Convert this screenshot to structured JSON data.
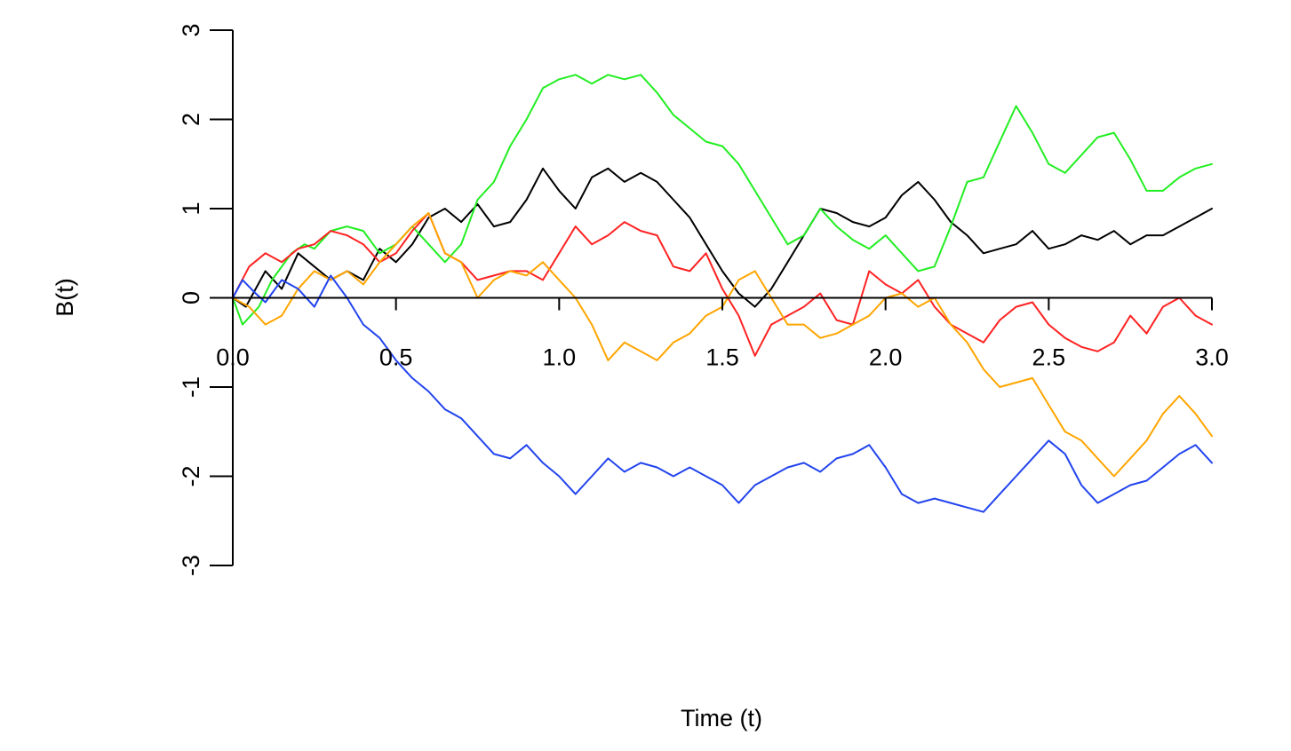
{
  "chart_data": {
    "type": "line",
    "title": "",
    "xlabel": "Time (t)",
    "ylabel": "B(t)",
    "xlim": [
      0,
      3
    ],
    "ylim": [
      -3,
      3
    ],
    "x_ticks": [
      0,
      0.5,
      1,
      1.5,
      2,
      2.5,
      3
    ],
    "x_tick_labels": [
      "0.0",
      "0.5",
      "1.0",
      "1.5",
      "2.0",
      "2.5",
      "3.0"
    ],
    "y_ticks": [
      -3,
      -2,
      -1,
      0,
      1,
      2,
      3
    ],
    "y_tick_labels": [
      "-3",
      "-2",
      "-1",
      "0",
      "1",
      "2",
      "3"
    ],
    "grid": false,
    "legend": "none",
    "x_axis_at_y": 0,
    "series": [
      {
        "color": "#000000",
        "points": [
          [
            0,
            0
          ],
          [
            0.04,
            -0.1
          ],
          [
            0.1,
            0.3
          ],
          [
            0.15,
            0.1
          ],
          [
            0.2,
            0.5
          ],
          [
            0.25,
            0.35
          ],
          [
            0.3,
            0.2
          ],
          [
            0.35,
            0.3
          ],
          [
            0.4,
            0.2
          ],
          [
            0.45,
            0.55
          ],
          [
            0.5,
            0.4
          ],
          [
            0.55,
            0.6
          ],
          [
            0.6,
            0.9
          ],
          [
            0.65,
            1.0
          ],
          [
            0.7,
            0.85
          ],
          [
            0.75,
            1.05
          ],
          [
            0.8,
            0.8
          ],
          [
            0.85,
            0.85
          ],
          [
            0.9,
            1.1
          ],
          [
            0.95,
            1.45
          ],
          [
            1.0,
            1.2
          ],
          [
            1.05,
            1.0
          ],
          [
            1.1,
            1.35
          ],
          [
            1.15,
            1.45
          ],
          [
            1.2,
            1.3
          ],
          [
            1.25,
            1.4
          ],
          [
            1.3,
            1.3
          ],
          [
            1.35,
            1.1
          ],
          [
            1.4,
            0.9
          ],
          [
            1.45,
            0.6
          ],
          [
            1.5,
            0.3
          ],
          [
            1.55,
            0.05
          ],
          [
            1.6,
            -0.1
          ],
          [
            1.65,
            0.1
          ],
          [
            1.7,
            0.4
          ],
          [
            1.75,
            0.7
          ],
          [
            1.8,
            1.0
          ],
          [
            1.85,
            0.95
          ],
          [
            1.9,
            0.85
          ],
          [
            1.95,
            0.8
          ],
          [
            2.0,
            0.9
          ],
          [
            2.05,
            1.15
          ],
          [
            2.1,
            1.3
          ],
          [
            2.15,
            1.1
          ],
          [
            2.2,
            0.85
          ],
          [
            2.25,
            0.7
          ],
          [
            2.3,
            0.5
          ],
          [
            2.35,
            0.55
          ],
          [
            2.4,
            0.6
          ],
          [
            2.45,
            0.75
          ],
          [
            2.5,
            0.55
          ],
          [
            2.55,
            0.6
          ],
          [
            2.6,
            0.7
          ],
          [
            2.65,
            0.65
          ],
          [
            2.7,
            0.75
          ],
          [
            2.75,
            0.6
          ],
          [
            2.8,
            0.7
          ],
          [
            2.85,
            0.7
          ],
          [
            2.9,
            0.8
          ],
          [
            2.95,
            0.9
          ],
          [
            3.0,
            1.0
          ]
        ]
      },
      {
        "color": "#22ee22",
        "points": [
          [
            0,
            0
          ],
          [
            0.03,
            -0.3
          ],
          [
            0.08,
            -0.1
          ],
          [
            0.12,
            0.2
          ],
          [
            0.18,
            0.5
          ],
          [
            0.22,
            0.6
          ],
          [
            0.25,
            0.55
          ],
          [
            0.3,
            0.75
          ],
          [
            0.35,
            0.8
          ],
          [
            0.4,
            0.75
          ],
          [
            0.45,
            0.5
          ],
          [
            0.5,
            0.6
          ],
          [
            0.55,
            0.8
          ],
          [
            0.6,
            0.6
          ],
          [
            0.65,
            0.4
          ],
          [
            0.7,
            0.6
          ],
          [
            0.75,
            1.1
          ],
          [
            0.8,
            1.3
          ],
          [
            0.85,
            1.7
          ],
          [
            0.9,
            2.0
          ],
          [
            0.95,
            2.35
          ],
          [
            1.0,
            2.45
          ],
          [
            1.05,
            2.5
          ],
          [
            1.1,
            2.4
          ],
          [
            1.15,
            2.5
          ],
          [
            1.2,
            2.45
          ],
          [
            1.25,
            2.5
          ],
          [
            1.3,
            2.3
          ],
          [
            1.35,
            2.05
          ],
          [
            1.4,
            1.9
          ],
          [
            1.45,
            1.75
          ],
          [
            1.5,
            1.7
          ],
          [
            1.55,
            1.5
          ],
          [
            1.6,
            1.2
          ],
          [
            1.65,
            0.9
          ],
          [
            1.7,
            0.6
          ],
          [
            1.75,
            0.7
          ],
          [
            1.8,
            1.0
          ],
          [
            1.85,
            0.8
          ],
          [
            1.9,
            0.65
          ],
          [
            1.95,
            0.55
          ],
          [
            2.0,
            0.7
          ],
          [
            2.05,
            0.5
          ],
          [
            2.1,
            0.3
          ],
          [
            2.15,
            0.35
          ],
          [
            2.2,
            0.8
          ],
          [
            2.25,
            1.3
          ],
          [
            2.3,
            1.35
          ],
          [
            2.35,
            1.75
          ],
          [
            2.4,
            2.15
          ],
          [
            2.45,
            1.85
          ],
          [
            2.5,
            1.5
          ],
          [
            2.55,
            1.4
          ],
          [
            2.6,
            1.6
          ],
          [
            2.65,
            1.8
          ],
          [
            2.7,
            1.85
          ],
          [
            2.75,
            1.55
          ],
          [
            2.8,
            1.2
          ],
          [
            2.85,
            1.2
          ],
          [
            2.9,
            1.35
          ],
          [
            2.95,
            1.45
          ],
          [
            3.0,
            1.5
          ]
        ]
      },
      {
        "color": "#ff2222",
        "points": [
          [
            0,
            0
          ],
          [
            0.05,
            0.35
          ],
          [
            0.1,
            0.5
          ],
          [
            0.15,
            0.4
          ],
          [
            0.2,
            0.55
          ],
          [
            0.25,
            0.6
          ],
          [
            0.3,
            0.75
          ],
          [
            0.35,
            0.7
          ],
          [
            0.4,
            0.6
          ],
          [
            0.45,
            0.4
          ],
          [
            0.5,
            0.5
          ],
          [
            0.55,
            0.75
          ],
          [
            0.6,
            0.95
          ],
          [
            0.65,
            0.5
          ],
          [
            0.7,
            0.4
          ],
          [
            0.75,
            0.2
          ],
          [
            0.8,
            0.25
          ],
          [
            0.85,
            0.3
          ],
          [
            0.9,
            0.3
          ],
          [
            0.95,
            0.2
          ],
          [
            1.0,
            0.5
          ],
          [
            1.05,
            0.8
          ],
          [
            1.1,
            0.6
          ],
          [
            1.15,
            0.7
          ],
          [
            1.2,
            0.85
          ],
          [
            1.25,
            0.75
          ],
          [
            1.3,
            0.7
          ],
          [
            1.35,
            0.35
          ],
          [
            1.4,
            0.3
          ],
          [
            1.45,
            0.5
          ],
          [
            1.5,
            0.1
          ],
          [
            1.55,
            -0.2
          ],
          [
            1.6,
            -0.65
          ],
          [
            1.65,
            -0.3
          ],
          [
            1.7,
            -0.2
          ],
          [
            1.75,
            -0.1
          ],
          [
            1.8,
            0.05
          ],
          [
            1.85,
            -0.25
          ],
          [
            1.9,
            -0.3
          ],
          [
            1.95,
            0.3
          ],
          [
            2.0,
            0.15
          ],
          [
            2.05,
            0.05
          ],
          [
            2.1,
            0.2
          ],
          [
            2.15,
            -0.1
          ],
          [
            2.2,
            -0.3
          ],
          [
            2.25,
            -0.4
          ],
          [
            2.3,
            -0.5
          ],
          [
            2.35,
            -0.25
          ],
          [
            2.4,
            -0.1
          ],
          [
            2.45,
            -0.05
          ],
          [
            2.5,
            -0.3
          ],
          [
            2.55,
            -0.45
          ],
          [
            2.6,
            -0.55
          ],
          [
            2.65,
            -0.6
          ],
          [
            2.7,
            -0.5
          ],
          [
            2.75,
            -0.2
          ],
          [
            2.8,
            -0.4
          ],
          [
            2.85,
            -0.1
          ],
          [
            2.9,
            0.0
          ],
          [
            2.95,
            -0.2
          ],
          [
            3.0,
            -0.3
          ]
        ]
      },
      {
        "color": "#ffa500",
        "points": [
          [
            0,
            0
          ],
          [
            0.05,
            -0.1
          ],
          [
            0.1,
            -0.3
          ],
          [
            0.15,
            -0.2
          ],
          [
            0.2,
            0.1
          ],
          [
            0.25,
            0.3
          ],
          [
            0.3,
            0.2
          ],
          [
            0.35,
            0.3
          ],
          [
            0.4,
            0.15
          ],
          [
            0.45,
            0.4
          ],
          [
            0.5,
            0.6
          ],
          [
            0.55,
            0.8
          ],
          [
            0.6,
            0.95
          ],
          [
            0.65,
            0.5
          ],
          [
            0.7,
            0.4
          ],
          [
            0.75,
            0.0
          ],
          [
            0.8,
            0.2
          ],
          [
            0.85,
            0.3
          ],
          [
            0.9,
            0.25
          ],
          [
            0.95,
            0.4
          ],
          [
            1.0,
            0.2
          ],
          [
            1.05,
            0.0
          ],
          [
            1.1,
            -0.3
          ],
          [
            1.15,
            -0.7
          ],
          [
            1.2,
            -0.5
          ],
          [
            1.25,
            -0.6
          ],
          [
            1.3,
            -0.7
          ],
          [
            1.35,
            -0.5
          ],
          [
            1.4,
            -0.4
          ],
          [
            1.45,
            -0.2
          ],
          [
            1.5,
            -0.1
          ],
          [
            1.55,
            0.2
          ],
          [
            1.6,
            0.3
          ],
          [
            1.65,
            0.0
          ],
          [
            1.7,
            -0.3
          ],
          [
            1.75,
            -0.3
          ],
          [
            1.8,
            -0.45
          ],
          [
            1.85,
            -0.4
          ],
          [
            1.9,
            -0.3
          ],
          [
            1.95,
            -0.2
          ],
          [
            2.0,
            0.0
          ],
          [
            2.05,
            0.05
          ],
          [
            2.1,
            -0.1
          ],
          [
            2.15,
            0.0
          ],
          [
            2.2,
            -0.3
          ],
          [
            2.25,
            -0.5
          ],
          [
            2.3,
            -0.8
          ],
          [
            2.35,
            -1.0
          ],
          [
            2.4,
            -0.95
          ],
          [
            2.45,
            -0.9
          ],
          [
            2.5,
            -1.2
          ],
          [
            2.55,
            -1.5
          ],
          [
            2.6,
            -1.6
          ],
          [
            2.65,
            -1.8
          ],
          [
            2.7,
            -2.0
          ],
          [
            2.75,
            -1.8
          ],
          [
            2.8,
            -1.6
          ],
          [
            2.85,
            -1.3
          ],
          [
            2.9,
            -1.1
          ],
          [
            2.95,
            -1.3
          ],
          [
            3.0,
            -1.55
          ]
        ]
      },
      {
        "color": "#2244ee",
        "points": [
          [
            0,
            0
          ],
          [
            0.03,
            0.2
          ],
          [
            0.07,
            0.05
          ],
          [
            0.1,
            -0.05
          ],
          [
            0.15,
            0.2
          ],
          [
            0.2,
            0.1
          ],
          [
            0.25,
            -0.1
          ],
          [
            0.3,
            0.25
          ],
          [
            0.35,
            0.0
          ],
          [
            0.4,
            -0.3
          ],
          [
            0.45,
            -0.45
          ],
          [
            0.5,
            -0.7
          ],
          [
            0.55,
            -0.9
          ],
          [
            0.6,
            -1.05
          ],
          [
            0.65,
            -1.25
          ],
          [
            0.7,
            -1.35
          ],
          [
            0.75,
            -1.55
          ],
          [
            0.8,
            -1.75
          ],
          [
            0.85,
            -1.8
          ],
          [
            0.9,
            -1.65
          ],
          [
            0.95,
            -1.85
          ],
          [
            1.0,
            -2.0
          ],
          [
            1.05,
            -2.2
          ],
          [
            1.1,
            -2.0
          ],
          [
            1.15,
            -1.8
          ],
          [
            1.2,
            -1.95
          ],
          [
            1.25,
            -1.85
          ],
          [
            1.3,
            -1.9
          ],
          [
            1.35,
            -2.0
          ],
          [
            1.4,
            -1.9
          ],
          [
            1.45,
            -2.0
          ],
          [
            1.5,
            -2.1
          ],
          [
            1.55,
            -2.3
          ],
          [
            1.6,
            -2.1
          ],
          [
            1.65,
            -2.0
          ],
          [
            1.7,
            -1.9
          ],
          [
            1.75,
            -1.85
          ],
          [
            1.8,
            -1.95
          ],
          [
            1.85,
            -1.8
          ],
          [
            1.9,
            -1.75
          ],
          [
            1.95,
            -1.65
          ],
          [
            2.0,
            -1.9
          ],
          [
            2.05,
            -2.2
          ],
          [
            2.1,
            -2.3
          ],
          [
            2.15,
            -2.25
          ],
          [
            2.2,
            -2.3
          ],
          [
            2.25,
            -2.35
          ],
          [
            2.3,
            -2.4
          ],
          [
            2.35,
            -2.2
          ],
          [
            2.4,
            -2.0
          ],
          [
            2.45,
            -1.8
          ],
          [
            2.5,
            -1.6
          ],
          [
            2.55,
            -1.75
          ],
          [
            2.6,
            -2.1
          ],
          [
            2.65,
            -2.3
          ],
          [
            2.7,
            -2.2
          ],
          [
            2.75,
            -2.1
          ],
          [
            2.8,
            -2.05
          ],
          [
            2.85,
            -1.9
          ],
          [
            2.9,
            -1.75
          ],
          [
            2.95,
            -1.65
          ],
          [
            3.0,
            -1.85
          ]
        ]
      }
    ]
  }
}
